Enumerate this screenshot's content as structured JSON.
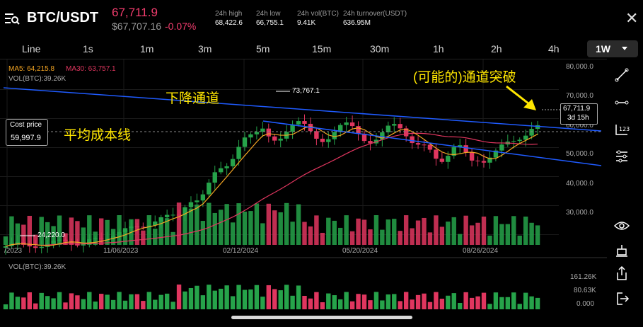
{
  "header": {
    "pair": "BTC/USDT",
    "last_price": "67,711.9",
    "usd_price": "$67,707.16",
    "change_pct": "-0.07%",
    "stats": [
      {
        "label": "24h high",
        "value": "68,422.6"
      },
      {
        "label": "24h low",
        "value": "66,755.1"
      },
      {
        "label": "24h vol(BTC)",
        "value": "9.41K"
      },
      {
        "label": "24h turnover(USDT)",
        "value": "636.95M"
      }
    ],
    "close_glyph": "✕"
  },
  "timeframes": [
    "Line",
    "1s",
    "1m",
    "3m",
    "5m",
    "15m",
    "30m",
    "1h",
    "2h",
    "4h"
  ],
  "active_timeframe": "1W",
  "indicators": {
    "ma5": "MA5: 64,215.8",
    "ma30": "MA30: 63,757.1",
    "vol": "VOL(BTC):39.26K",
    "vol_panel": "VOL(BTC):39.26K"
  },
  "price_axis": [
    "80,000.0",
    "70,000.0",
    "60,000.0",
    "50,000.0",
    "40,000.0",
    "30,000.0"
  ],
  "volume_axis": [
    "161.26K",
    "80.63K",
    "0.000"
  ],
  "date_axis": [
    "/2023",
    "11/06/2023",
    "02/12/2024",
    "05/20/2024",
    "08/26/2024"
  ],
  "markers": {
    "high": "73,767.1",
    "low": "24,220.0"
  },
  "cost_price": {
    "label": "Cost price",
    "value": "59,997.9"
  },
  "current_price_tag": {
    "price": "67,711.9",
    "countdown": "3d 15h"
  },
  "annotations": {
    "channel": "下降通道",
    "avg_cost": "平均成本线",
    "breakout": "(可能的)通道突破"
  },
  "colors": {
    "up": "#26a34a",
    "down": "#e0365f",
    "ma5": "#f5a623",
    "ma30": "#e0365f",
    "channel": "#1f5bff",
    "annotation": "#ffe600"
  },
  "right_toolbar": [
    "trend-line-tool-icon",
    "horizontal-line-tool-icon",
    "measure-tool-icon",
    "indicators-settings-icon",
    "visibility-eye-icon",
    "drawing-tools-icon",
    "share-icon",
    "exit-fullscreen-icon"
  ],
  "chart_data": {
    "type": "candlestick",
    "interval": "1W",
    "x_labels": [
      "11/06/2023",
      "02/12/2024",
      "05/20/2024",
      "08/26/2024"
    ],
    "ylim": [
      20000,
      82000
    ],
    "marked_high": 73767.1,
    "marked_low": 24220.0,
    "last_close": 67711.9,
    "cost_price": 59997.9,
    "series": [
      {
        "name": "MA5",
        "last": 64215.8
      },
      {
        "name": "MA30",
        "last": 63757.1
      },
      {
        "name": "VOL(BTC)",
        "last": 39260
      }
    ]
  }
}
